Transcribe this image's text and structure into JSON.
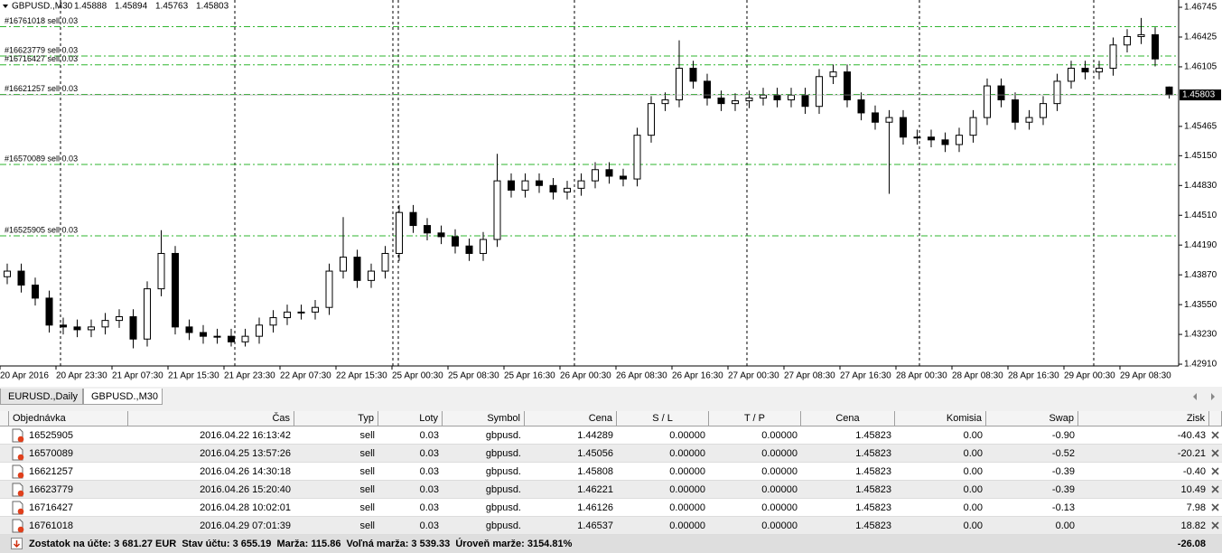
{
  "chart_data": {
    "type": "candlestick",
    "title": "GBPUSD.,M30",
    "categories": [
      "20 Apr 2016",
      null,
      null,
      null,
      "20 Apr 23:30",
      null,
      null,
      null,
      "21 Apr 07:30",
      null,
      null,
      null,
      "21 Apr 15:30",
      null,
      null,
      null,
      "21 Apr 23:30",
      null,
      null,
      null,
      "22 Apr 07:30",
      null,
      null,
      null,
      "22 Apr 15:30",
      null,
      null,
      null,
      "25 Apr 00:30",
      null,
      null,
      null,
      "25 Apr 08:30",
      null,
      null,
      null,
      "25 Apr 16:30",
      null,
      null,
      null,
      "26 Apr 00:30",
      null,
      null,
      null,
      "26 Apr 08:30",
      null,
      null,
      null,
      "26 Apr 16:30",
      null,
      null,
      null,
      "27 Apr 00:30",
      null,
      null,
      null,
      "27 Apr 08:30",
      null,
      null,
      null,
      "27 Apr 16:30",
      null,
      null,
      null,
      "28 Apr 00:30",
      null,
      null,
      null,
      "28 Apr 08:30",
      null,
      null,
      null,
      "28 Apr 16:30",
      null,
      null,
      null,
      "29 Apr 00:30",
      null,
      null,
      null,
      "29 Apr 08:30",
      null,
      null,
      null
    ],
    "open": [
      1.4385,
      1.4391,
      1.4376,
      1.4362,
      1.4333,
      1.4331,
      1.4328,
      1.4331,
      1.4338,
      1.4342,
      1.4318,
      1.4372,
      1.441,
      1.4331,
      1.4325,
      1.4321,
      1.4321,
      1.4315,
      1.4321,
      1.4333,
      1.4341,
      1.4347,
      1.4347,
      1.4352,
      1.4391,
      1.4406,
      1.4381,
      1.4391,
      1.441,
      1.4454,
      1.444,
      1.4432,
      1.4428,
      1.4418,
      1.441,
      1.4425,
      1.4488,
      1.4478,
      1.4488,
      1.4483,
      1.4476,
      1.448,
      1.4488,
      1.45,
      1.4493,
      1.449,
      1.4537,
      1.4571,
      1.4575,
      1.4609,
      1.4595,
      1.4577,
      1.4571,
      1.4574,
      1.4577,
      1.458,
      1.4575,
      1.458,
      1.4568,
      1.46,
      1.4605,
      1.4575,
      1.4561,
      1.4551,
      1.4556,
      1.4535,
      1.4535,
      1.4532,
      1.4527,
      1.4537,
      1.4556,
      1.459,
      1.4575,
      1.4551,
      1.4556,
      1.4571,
      1.4595,
      1.4609,
      1.4605,
      1.4609,
      1.4634,
      1.4643,
      1.4645,
      1.45888
    ],
    "high": [
      1.4399,
      1.4399,
      1.4384,
      1.437,
      1.4341,
      1.4339,
      1.4339,
      1.4346,
      1.435,
      1.435,
      1.438,
      1.4435,
      1.4418,
      1.4339,
      1.4333,
      1.4329,
      1.4329,
      1.4329,
      1.4341,
      1.4349,
      1.4355,
      1.4355,
      1.436,
      1.4399,
      1.4449,
      1.4414,
      1.4399,
      1.4418,
      1.4462,
      1.4462,
      1.4448,
      1.444,
      1.4436,
      1.4426,
      1.4433,
      1.4517,
      1.4496,
      1.4496,
      1.4496,
      1.4491,
      1.4488,
      1.4496,
      1.4508,
      1.4508,
      1.4501,
      1.4545,
      1.4579,
      1.4583,
      1.4639,
      1.4617,
      1.4603,
      1.4585,
      1.4582,
      1.4585,
      1.4588,
      1.4588,
      1.4588,
      1.4588,
      1.4608,
      1.4613,
      1.4613,
      1.4583,
      1.4569,
      1.4564,
      1.4564,
      1.4543,
      1.4543,
      1.454,
      1.4545,
      1.4564,
      1.4598,
      1.4598,
      1.4583,
      1.4564,
      1.4579,
      1.4603,
      1.4617,
      1.4617,
      1.4617,
      1.4642,
      1.4651,
      1.4663,
      1.4653,
      1.45894
    ],
    "low": [
      1.4377,
      1.4368,
      1.4354,
      1.4325,
      1.4323,
      1.432,
      1.432,
      1.4323,
      1.433,
      1.4308,
      1.431,
      1.4364,
      1.4323,
      1.4317,
      1.4313,
      1.4313,
      1.431,
      1.431,
      1.4313,
      1.4325,
      1.4333,
      1.4339,
      1.4339,
      1.4344,
      1.4383,
      1.4373,
      1.4373,
      1.4383,
      1.4402,
      1.4432,
      1.4424,
      1.442,
      1.441,
      1.4402,
      1.4402,
      1.4417,
      1.447,
      1.447,
      1.4475,
      1.4468,
      1.4468,
      1.4472,
      1.448,
      1.4485,
      1.4482,
      1.4482,
      1.4529,
      1.4563,
      1.4567,
      1.4587,
      1.4569,
      1.4563,
      1.4563,
      1.4566,
      1.4569,
      1.4567,
      1.4567,
      1.456,
      1.456,
      1.4592,
      1.4567,
      1.4553,
      1.4543,
      1.4474,
      1.4527,
      1.4527,
      1.4524,
      1.4519,
      1.4519,
      1.4529,
      1.4548,
      1.4567,
      1.4543,
      1.4543,
      1.4548,
      1.4563,
      1.4587,
      1.4597,
      1.4597,
      1.4601,
      1.4626,
      1.4635,
      1.4611,
      1.45763
    ],
    "close": [
      1.4391,
      1.4376,
      1.4362,
      1.4333,
      1.4331,
      1.4328,
      1.4331,
      1.4338,
      1.4342,
      1.4318,
      1.4372,
      1.441,
      1.4331,
      1.4325,
      1.4321,
      1.4321,
      1.4315,
      1.4321,
      1.4333,
      1.4341,
      1.4347,
      1.4347,
      1.4352,
      1.4391,
      1.4406,
      1.4381,
      1.4391,
      1.441,
      1.4454,
      1.444,
      1.4432,
      1.4428,
      1.4418,
      1.441,
      1.4425,
      1.4488,
      1.4478,
      1.4488,
      1.4483,
      1.4476,
      1.448,
      1.4488,
      1.45,
      1.4493,
      1.449,
      1.4537,
      1.4571,
      1.4575,
      1.4609,
      1.4595,
      1.4577,
      1.4571,
      1.4574,
      1.4577,
      1.458,
      1.4575,
      1.458,
      1.4568,
      1.46,
      1.4605,
      1.4575,
      1.4561,
      1.4551,
      1.4556,
      1.4535,
      1.4535,
      1.4532,
      1.4527,
      1.4537,
      1.4556,
      1.459,
      1.4575,
      1.4551,
      1.4556,
      1.4571,
      1.4595,
      1.4609,
      1.4605,
      1.4609,
      1.4634,
      1.4643,
      1.4645,
      1.4619,
      1.45803
    ],
    "ylim": [
      1.42891,
      1.46823
    ],
    "yticks": [
      1.46745,
      1.46425,
      1.46105,
      1.45465,
      {
        "value": 1.4515,
        "label": "1.45150"
      },
      {
        "value": 1.4483,
        "label": "1.44830"
      },
      {
        "value": 1.4451,
        "label": "1.44510"
      },
      {
        "value": 1.4419,
        "label": "1.44190"
      },
      {
        "value": 1.4387,
        "label": "1.43870"
      },
      {
        "value": 1.4355,
        "label": "1.43550"
      },
      {
        "value": 1.4323,
        "label": "1.43230"
      },
      {
        "value": 1.4291,
        "label": "1.42910"
      }
    ],
    "orders": [
      {
        "label": "#16761018 sell 0.03",
        "price": 1.46537
      },
      {
        "label": "#16623779 sell 0.03",
        "price": 1.46221
      },
      {
        "label": "#16716427 sell 0.03",
        "price": 1.46126
      },
      {
        "label": "#16621257 sell 0.03",
        "price": 1.45808
      },
      {
        "label": "#16570089 sell 0.03",
        "price": 1.45056
      },
      {
        "label": "#16525905 sell 0.03",
        "price": 1.44289
      }
    ],
    "bull_color": "#ffffff",
    "bear_color": "#000000",
    "order_color": "#2fb52f"
  },
  "terminal": {
    "tabs": [
      "EURUSD.,Daily",
      "GBPUSD.,M30"
    ],
    "columns": [
      "Objednávka",
      "Čas",
      "Typ",
      "Loty",
      "Symbol",
      "Cena",
      "S / L",
      "T / P",
      "Cena",
      "Komisia",
      "Swap",
      "Zisk"
    ],
    "rows": [
      [
        "16525905",
        "2016.04.22 16:13:42",
        "sell",
        "0.03",
        "gbpusd.",
        "1.44289",
        "0.00000",
        "0.00000",
        "1.45823",
        "0.00",
        "-0.90",
        "-40.43"
      ],
      [
        "16570089",
        "2016.04.25 13:57:26",
        "sell",
        "0.03",
        "gbpusd.",
        "1.45056",
        "0.00000",
        "0.00000",
        "1.45823",
        "0.00",
        "-0.52",
        "-20.21"
      ],
      [
        "16621257",
        "2016.04.26 14:30:18",
        "sell",
        "0.03",
        "gbpusd.",
        "1.45808",
        "0.00000",
        "0.00000",
        "1.45823",
        "0.00",
        "-0.39",
        "-0.40"
      ],
      [
        "16623779",
        "2016.04.26 15:20:40",
        "sell",
        "0.03",
        "gbpusd.",
        "1.46221",
        "0.00000",
        "0.00000",
        "1.45823",
        "0.00",
        "-0.39",
        "10.49"
      ],
      [
        "16716427",
        "2016.04.28 10:02:01",
        "sell",
        "0.03",
        "gbpusd.",
        "1.46126",
        "0.00000",
        "0.00000",
        "1.45823",
        "0.00",
        "-0.13",
        "7.98"
      ],
      [
        "16761018",
        "2016.04.29 07:01:39",
        "sell",
        "0.03",
        "gbpusd.",
        "1.46537",
        "0.00000",
        "0.00000",
        "1.45823",
        "0.00",
        "0.00",
        "18.82"
      ]
    ],
    "footer": {
      "summary": "Zostatok na účte: 3 681.27 EUR  Stav účtu: 3 655.19  Marža: 115.86  Voľná marža: 3 539.33  Úroveň marže: 3154.81%",
      "total": "-26.08"
    }
  }
}
